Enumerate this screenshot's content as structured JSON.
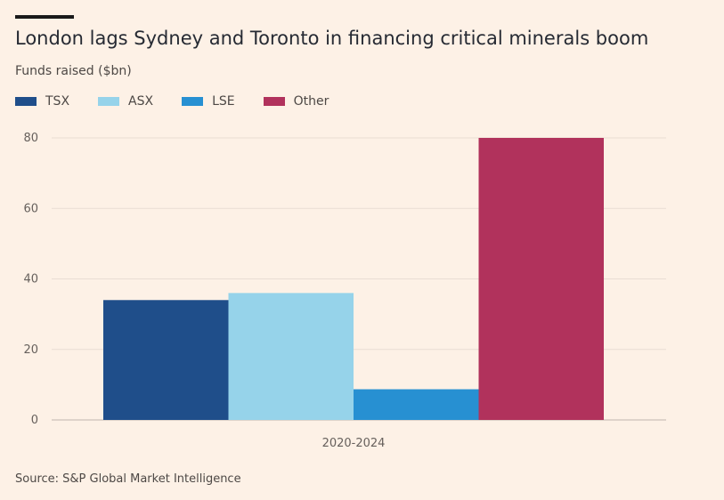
{
  "title": "London lags Sydney and Toronto in financing critical minerals boom",
  "subtitle": "Funds raised ($bn)",
  "source": "Source: S&P Global Market Intelligence",
  "colors": {
    "background": "#fdf1e6",
    "grid": "#e9ddd3",
    "axis": "#bfb5ad"
  },
  "chart_data": {
    "type": "bar",
    "categories": [
      "2020-2024"
    ],
    "series": [
      {
        "name": "TSX",
        "color": "#1f4e8a",
        "values": [
          34
        ]
      },
      {
        "name": "ASX",
        "color": "#96d3ea",
        "values": [
          36
        ]
      },
      {
        "name": "LSE",
        "color": "#2790d2",
        "values": [
          8.7
        ]
      },
      {
        "name": "Other",
        "color": "#b1325c",
        "values": [
          80
        ]
      }
    ],
    "title": "London lags Sydney and Toronto in financing critical minerals boom",
    "ylabel": "Funds raised ($bn)",
    "ylim": [
      0,
      80
    ],
    "yticks": [
      0,
      20,
      40,
      60,
      80
    ],
    "grid": true,
    "legend": "top-left"
  }
}
